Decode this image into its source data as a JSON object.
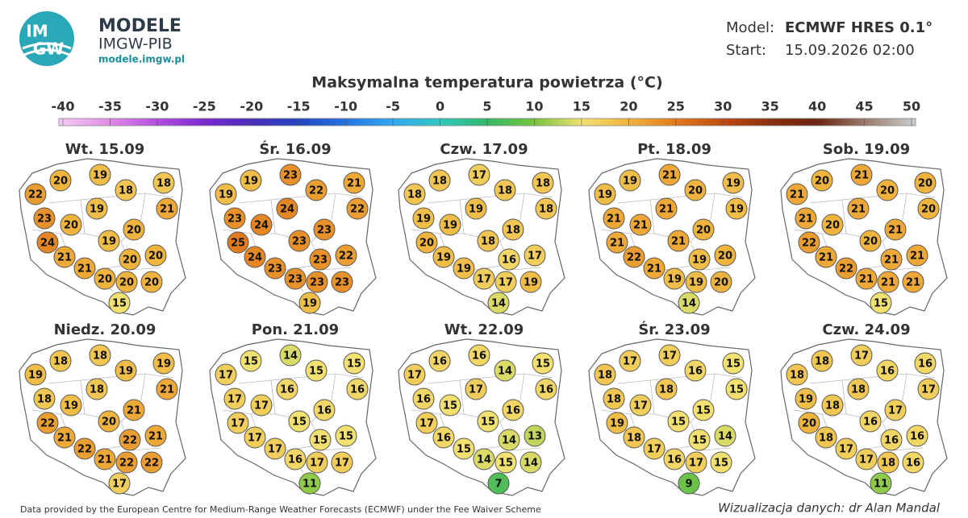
{
  "header": {
    "logo": [
      "IM",
      "GW"
    ],
    "brand": "MODELE",
    "org": "IMGW-PIB",
    "url": "modele.imgw.pl"
  },
  "model": {
    "label": "Model:",
    "value": "ECMWF HRES 0.1°"
  },
  "start": {
    "label": "Start:",
    "value": "15.09.2026 02:00"
  },
  "title": "Maksymalna temperatura powietrza (°C)",
  "colorbar": {
    "ticks": [
      -40,
      -35,
      -30,
      -25,
      -20,
      -15,
      -10,
      -5,
      0,
      5,
      10,
      15,
      20,
      25,
      30,
      35,
      40,
      45,
      50
    ],
    "colors": [
      "#f4c8f4",
      "#e08ae6",
      "#b44ee0",
      "#7a28d0",
      "#4a2cbc",
      "#2244c0",
      "#2474e0",
      "#34a8f0",
      "#30c8c0",
      "#34b868",
      "#78c440",
      "#f2e070",
      "#f0b43e",
      "#e27a1e",
      "#c04a10",
      "#8a2e0e",
      "#6a2410",
      "#9a7a6a",
      "#c8c8c8"
    ]
  },
  "maps": [
    {
      "date": "Wt. 15.09",
      "values": [
        20,
        19,
        18,
        22,
        18,
        21,
        19,
        23,
        20,
        20,
        24,
        19,
        20,
        21,
        20,
        21,
        20,
        20,
        20,
        15
      ]
    },
    {
      "date": "Śr. 16.09",
      "values": [
        19,
        23,
        21,
        19,
        22,
        22,
        24,
        23,
        24,
        23,
        25,
        23,
        22,
        24,
        23,
        23,
        23,
        23,
        23,
        19
      ]
    },
    {
      "date": "Czw. 17.09",
      "values": [
        18,
        17,
        18,
        18,
        18,
        18,
        19,
        19,
        19,
        18,
        20,
        18,
        17,
        19,
        16,
        19,
        17,
        17,
        19,
        14
      ]
    },
    {
      "date": "Pt. 18.09",
      "values": [
        19,
        21,
        19,
        19,
        20,
        19,
        21,
        21,
        21,
        20,
        21,
        21,
        20,
        22,
        19,
        21,
        19,
        19,
        20,
        14
      ]
    },
    {
      "date": "Sob. 19.09",
      "values": [
        20,
        21,
        20,
        21,
        20,
        20,
        21,
        21,
        20,
        21,
        22,
        20,
        21,
        21,
        21,
        22,
        21,
        21,
        21,
        15
      ]
    },
    {
      "date": "Niedz. 20.09",
      "values": [
        18,
        18,
        19,
        19,
        19,
        21,
        18,
        18,
        19,
        21,
        22,
        20,
        21,
        21,
        22,
        22,
        21,
        22,
        22,
        17
      ]
    },
    {
      "date": "Pon. 21.09",
      "values": [
        15,
        14,
        15,
        17,
        15,
        16,
        16,
        17,
        17,
        16,
        17,
        15,
        15,
        17,
        15,
        17,
        16,
        17,
        17,
        11
      ]
    },
    {
      "date": "Wt. 22.09",
      "values": [
        16,
        16,
        15,
        17,
        14,
        16,
        17,
        16,
        15,
        16,
        17,
        15,
        13,
        16,
        14,
        15,
        14,
        15,
        14,
        7
      ]
    },
    {
      "date": "Śr. 23.09",
      "values": [
        17,
        17,
        15,
        18,
        16,
        15,
        18,
        18,
        17,
        15,
        19,
        15,
        14,
        18,
        15,
        17,
        16,
        17,
        15,
        9
      ]
    },
    {
      "date": "Czw. 24.09",
      "values": [
        18,
        17,
        16,
        18,
        16,
        17,
        18,
        19,
        18,
        17,
        20,
        16,
        16,
        18,
        16,
        17,
        17,
        18,
        16,
        11
      ]
    }
  ],
  "footer": {
    "source": "Data provided by the European Centre for Medium-Range Weather Forecasts (ECMWF) under the Fee Waiver Scheme",
    "credit": "Wizualizacja danych: dr Alan Mandal"
  }
}
